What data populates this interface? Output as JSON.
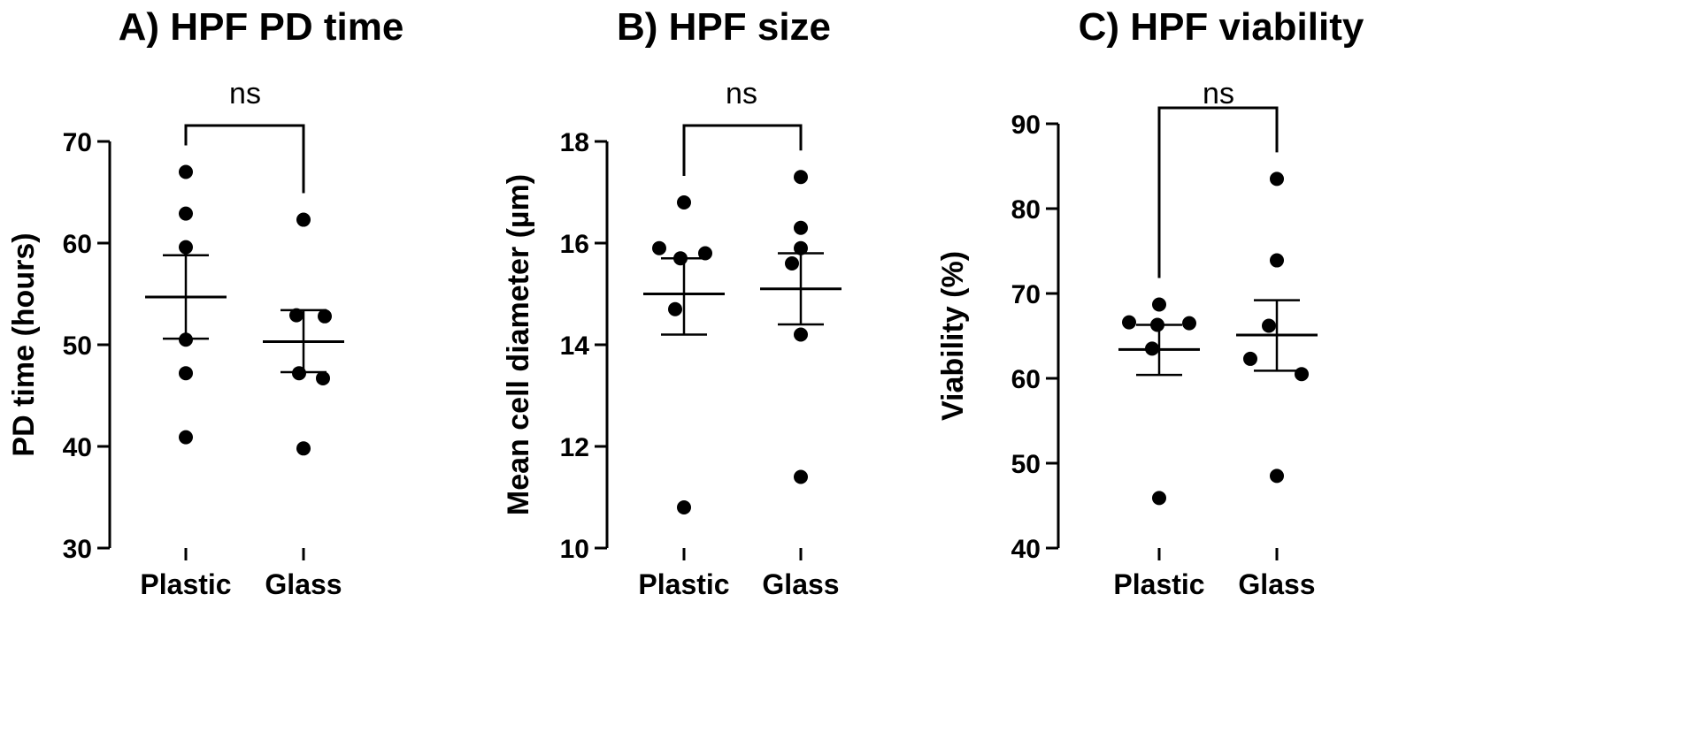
{
  "chart_data": [
    {
      "type": "scatter",
      "title": "A) HPF PD time",
      "ylabel": "PD time (hours)",
      "ylim": [
        30,
        70
      ],
      "yticks": [
        30,
        40,
        50,
        60,
        70
      ],
      "categories": [
        "Plastic",
        "Glass"
      ],
      "significance": "ns",
      "groups": [
        {
          "category": "Plastic",
          "values": [
            67.0,
            62.9,
            59.6,
            50.5,
            47.2,
            40.9
          ],
          "mean": 54.7,
          "sem_low": 50.6,
          "sem_high": 58.8
        },
        {
          "category": "Glass",
          "values": [
            62.3,
            52.9,
            52.8,
            47.2,
            46.7,
            39.8
          ],
          "mean": 50.3,
          "sem_low": 47.3,
          "sem_high": 53.4
        }
      ]
    },
    {
      "type": "scatter",
      "title": "B) HPF size",
      "ylabel": "Mean cell diameter (µm)",
      "ylim": [
        10,
        18
      ],
      "yticks": [
        10,
        12,
        14,
        16,
        18
      ],
      "categories": [
        "Plastic",
        "Glass"
      ],
      "significance": "ns",
      "groups": [
        {
          "category": "Plastic",
          "values": [
            16.8,
            15.9,
            15.8,
            15.7,
            14.7,
            10.8
          ],
          "mean": 15.0,
          "sem_low": 14.2,
          "sem_high": 15.7
        },
        {
          "category": "Glass",
          "values": [
            17.3,
            16.3,
            15.9,
            15.6,
            14.2,
            11.4
          ],
          "mean": 15.1,
          "sem_low": 14.4,
          "sem_high": 15.8
        }
      ]
    },
    {
      "type": "scatter",
      "title": "C) HPF viability",
      "ylabel": "Viability (%)",
      "ylim": [
        40,
        90
      ],
      "yticks": [
        40,
        50,
        60,
        70,
        80,
        90
      ],
      "categories": [
        "Plastic",
        "Glass"
      ],
      "significance": "ns",
      "groups": [
        {
          "category": "Plastic",
          "values": [
            68.7,
            66.6,
            66.5,
            66.3,
            63.5,
            45.9
          ],
          "mean": 63.4,
          "sem_low": 60.4,
          "sem_high": 66.3
        },
        {
          "category": "Glass",
          "values": [
            83.5,
            73.9,
            66.2,
            62.3,
            60.5,
            48.5
          ],
          "mean": 65.1,
          "sem_low": 60.9,
          "sem_high": 69.2
        }
      ]
    }
  ]
}
